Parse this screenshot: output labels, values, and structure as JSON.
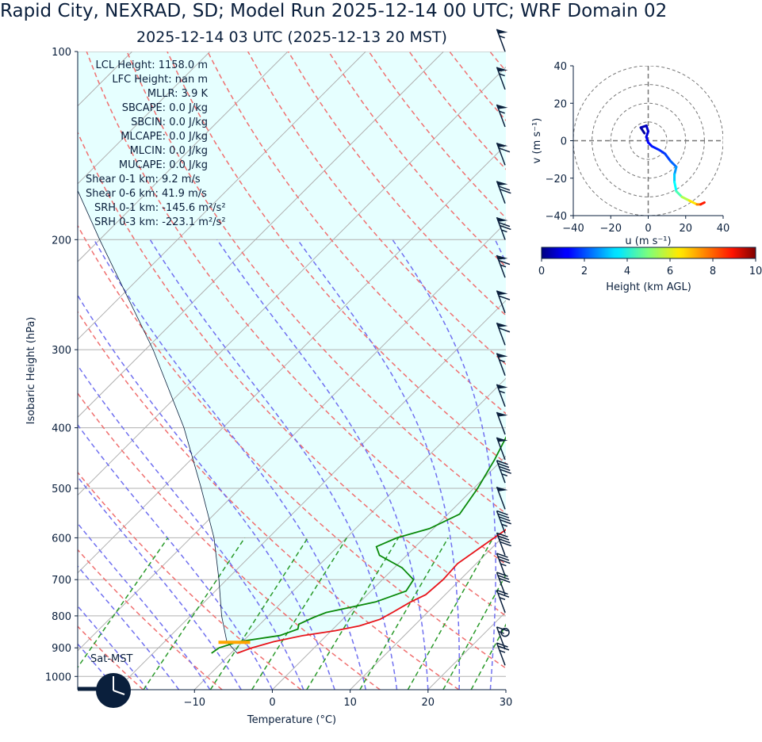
{
  "title": "Rapid City, NEXRAD, SD; Model Run 2025-12-14 00 UTC; WRF Domain 02",
  "subtitle": "2025-12-14 03 UTC  (2025-12-13 20 MST)",
  "stats": [
    "LCL Height: 1158.0 m",
    "LFC Height: nan m",
    "MLLR: 3.9 K",
    "SBCAPE: 0.0 J/kg",
    "SBCIN: 0.0 J/kg",
    "MLCAPE: 0.0 J/kg",
    "MLCIN: 0.0 J/kg",
    "MUCAPE: 0.0 J/kg",
    "Shear 0-1 km: 9.2 m/s",
    "Shear 0-6 km: 41.9 m/s",
    "SRH 0-1 km: -145.6 m²/s²",
    "SRH 0-3 km: -223.1 m²/s²"
  ],
  "clock_label": "Sat-MST",
  "colors": {
    "temperature": "#e8141a",
    "dewpoint": "#0a8a0a",
    "parcel_fill": "#e6ffff",
    "isotherm": "#b0b0b0",
    "dry_adiabat": "#f07070",
    "moist_adiabat": "#7070f0",
    "mixing_ratio": "#2a9a2a",
    "text": "#0a1f3c",
    "lcl_marker": "#ffa500"
  },
  "chart_data": [
    {
      "type": "skew-t",
      "xlabel": "Temperature (°C)",
      "ylabel": "Isobaric Height (hPa)",
      "xlim": [
        -25,
        30
      ],
      "ylim": [
        1050,
        100
      ],
      "xticks": [
        -10,
        0,
        10,
        20,
        30
      ],
      "xtick_labels": [
        "−10",
        "0",
        "10",
        "20",
        "30"
      ],
      "yticks": [
        1000,
        900,
        800,
        700,
        600,
        500,
        400,
        300,
        200,
        100
      ],
      "temperature": [
        {
          "p": 918,
          "t": -9.2
        },
        {
          "p": 900,
          "t": -8.0
        },
        {
          "p": 880,
          "t": -6.0
        },
        {
          "p": 860,
          "t": -3.0
        },
        {
          "p": 845,
          "t": 0.5
        },
        {
          "p": 830,
          "t": 3.0
        },
        {
          "p": 810,
          "t": 4.8
        },
        {
          "p": 790,
          "t": 5.5
        },
        {
          "p": 760,
          "t": 6.5
        },
        {
          "p": 740,
          "t": 7.5
        },
        {
          "p": 700,
          "t": 7.8
        },
        {
          "p": 660,
          "t": 7.6
        },
        {
          "p": 620,
          "t": 8.5
        },
        {
          "p": 580,
          "t": 9.5
        },
        {
          "p": 550,
          "t": 10.3
        },
        {
          "p": 500,
          "t": 9.4
        },
        {
          "p": 450,
          "t": 7.2
        },
        {
          "p": 400,
          "t": 5.5
        },
        {
          "p": 350,
          "t": 2.5
        },
        {
          "p": 300,
          "t": -1.0
        },
        {
          "p": 250,
          "t": -5.0
        },
        {
          "p": 220,
          "t": -8.5
        },
        {
          "p": 190,
          "t": -13.0
        },
        {
          "p": 160,
          "t": -11.0
        },
        {
          "p": 140,
          "t": -4.0
        },
        {
          "p": 120,
          "t": 4.0
        },
        {
          "p": 100,
          "t": 11.0
        }
      ],
      "dewpoint": [
        {
          "p": 918,
          "t": -12.5
        },
        {
          "p": 900,
          "t": -12.2
        },
        {
          "p": 880,
          "t": -10.5
        },
        {
          "p": 860,
          "t": -6.0
        },
        {
          "p": 840,
          "t": -4.5
        },
        {
          "p": 825,
          "t": -5.0
        },
        {
          "p": 805,
          "t": -4.0
        },
        {
          "p": 790,
          "t": -3.0
        },
        {
          "p": 760,
          "t": 2.0
        },
        {
          "p": 730,
          "t": 4.5
        },
        {
          "p": 700,
          "t": 4.0
        },
        {
          "p": 670,
          "t": 1.0
        },
        {
          "p": 640,
          "t": -3.5
        },
        {
          "p": 620,
          "t": -5.0
        },
        {
          "p": 600,
          "t": -3.5
        },
        {
          "p": 580,
          "t": -0.5
        },
        {
          "p": 550,
          "t": 1.5
        },
        {
          "p": 500,
          "t": 0.5
        },
        {
          "p": 450,
          "t": -1.0
        },
        {
          "p": 400,
          "t": -3.0
        },
        {
          "p": 360,
          "t": -5.5
        },
        {
          "p": 320,
          "t": -5.5
        },
        {
          "p": 290,
          "t": -8.5
        },
        {
          "p": 250,
          "t": -13.0
        },
        {
          "p": 200,
          "t": -10.0
        },
        {
          "p": 160,
          "t": -7.0
        },
        {
          "p": 140,
          "t": -5.0
        },
        {
          "p": 100,
          "t": 5.0
        }
      ],
      "parcel": [
        {
          "p": 918,
          "t": -9.2
        },
        {
          "p": 880,
          "t": -12.0
        },
        {
          "p": 800,
          "t": -16.0
        },
        {
          "p": 700,
          "t": -21.0
        },
        {
          "p": 600,
          "t": -27.0
        },
        {
          "p": 500,
          "t": -35.0
        },
        {
          "p": 400,
          "t": -45.0
        },
        {
          "p": 300,
          "t": -59.0
        },
        {
          "p": 200,
          "t": -80.0
        },
        {
          "p": 100,
          "t": -115.0
        }
      ],
      "lcl_pressure": 882,
      "wind_barbs": [
        {
          "p": 100,
          "speed_kt": 55
        },
        {
          "p": 115,
          "speed_kt": 55
        },
        {
          "p": 132,
          "speed_kt": 55
        },
        {
          "p": 152,
          "speed_kt": 60
        },
        {
          "p": 175,
          "speed_kt": 70
        },
        {
          "p": 200,
          "speed_kt": 75
        },
        {
          "p": 230,
          "speed_kt": 65
        },
        {
          "p": 262,
          "speed_kt": 60
        },
        {
          "p": 295,
          "speed_kt": 60
        },
        {
          "p": 330,
          "speed_kt": 55
        },
        {
          "p": 370,
          "speed_kt": 55
        },
        {
          "p": 410,
          "speed_kt": 50
        },
        {
          "p": 450,
          "speed_kt": 50
        },
        {
          "p": 490,
          "speed_kt": 45
        },
        {
          "p": 540,
          "speed_kt": 50
        },
        {
          "p": 590,
          "speed_kt": 45
        },
        {
          "p": 640,
          "speed_kt": 40
        },
        {
          "p": 690,
          "speed_kt": 35
        },
        {
          "p": 740,
          "speed_kt": 30
        },
        {
          "p": 790,
          "speed_kt": 25
        },
        {
          "p": 850,
          "speed_kt": 0
        },
        {
          "p": 905,
          "speed_kt": 15
        },
        {
          "p": 960,
          "speed_kt": 25
        }
      ]
    },
    {
      "type": "hodograph",
      "xlabel": "u (m s⁻¹)",
      "ylabel": "v (m s⁻¹)",
      "xlim": [
        -40,
        40
      ],
      "ylim": [
        -40,
        40
      ],
      "ticks": [
        -40,
        -20,
        0,
        20,
        40
      ],
      "tick_labels": [
        "−40",
        "−20",
        "0",
        "20",
        "40"
      ],
      "rings": [
        10,
        20,
        30,
        40
      ],
      "points": [
        {
          "u": -2,
          "v": 4,
          "h": 0.2
        },
        {
          "u": -4,
          "v": 7,
          "h": 0.4
        },
        {
          "u": -1,
          "v": 8,
          "h": 0.6
        },
        {
          "u": 0,
          "v": 5,
          "h": 0.8
        },
        {
          "u": -1,
          "v": 2,
          "h": 1.0
        },
        {
          "u": 0,
          "v": -1,
          "h": 1.2
        },
        {
          "u": 2,
          "v": -3,
          "h": 1.4
        },
        {
          "u": 6,
          "v": -5,
          "h": 1.6
        },
        {
          "u": 9,
          "v": -7,
          "h": 1.8
        },
        {
          "u": 12,
          "v": -11,
          "h": 2.0
        },
        {
          "u": 15,
          "v": -14,
          "h": 2.5
        },
        {
          "u": 14,
          "v": -18,
          "h": 3.0
        },
        {
          "u": 14,
          "v": -22,
          "h": 3.5
        },
        {
          "u": 15,
          "v": -27,
          "h": 4.0
        },
        {
          "u": 18,
          "v": -30,
          "h": 5.0
        },
        {
          "u": 22,
          "v": -32,
          "h": 6.0
        },
        {
          "u": 26,
          "v": -34,
          "h": 7.0
        },
        {
          "u": 28,
          "v": -34,
          "h": 8.0
        },
        {
          "u": 30,
          "v": -33,
          "h": 9.0
        }
      ]
    },
    {
      "type": "colorbar",
      "label": "Height (km AGL)",
      "ticks": [
        0,
        2,
        4,
        6,
        8,
        10
      ],
      "range": [
        0,
        10
      ]
    }
  ]
}
